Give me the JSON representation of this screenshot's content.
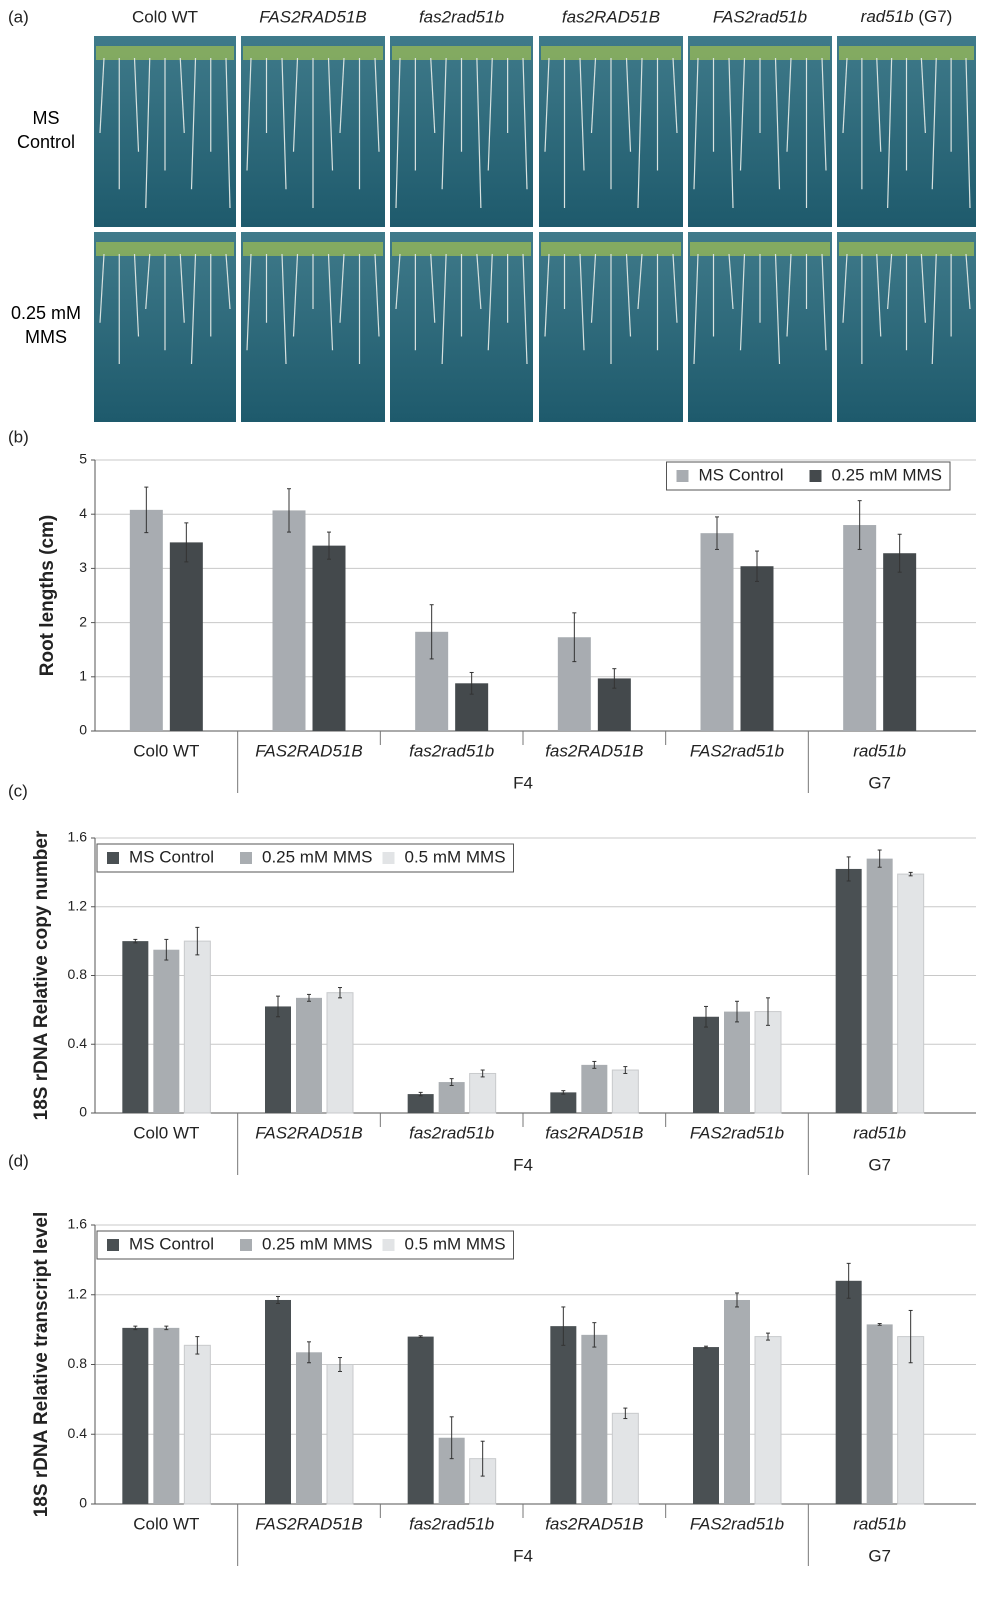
{
  "panel_a": {
    "label": "(a)",
    "columns": [
      "Col0 WT",
      "FAS2RAD51B",
      "fas2rad51b",
      "fas2RAD51B",
      "FAS2rad51b",
      "rad51b"
    ],
    "last_column_note": "(G7)",
    "rows": [
      "MS Control",
      "0.25 mM MMS"
    ]
  },
  "chart_data": [
    {
      "type": "bar",
      "panel": "(b)",
      "y_label": "Root lengths (cm)",
      "categories": [
        "Col0 WT",
        "FAS2RAD51B",
        "fas2rad51b",
        "fas2RAD51B",
        "FAS2rad51b",
        "rad51b"
      ],
      "groups": [
        {
          "label": "F4",
          "first": 1,
          "last": 4
        },
        {
          "label": "G7",
          "first": 5,
          "last": 5
        }
      ],
      "series": [
        {
          "name": "MS Control",
          "color": "#a8acb1",
          "values": [
            4.08,
            4.07,
            1.83,
            1.73,
            3.65,
            3.8
          ],
          "errors": [
            0.42,
            0.4,
            0.5,
            0.45,
            0.3,
            0.45
          ]
        },
        {
          "name": "0.25 mM MMS",
          "color": "#44494c",
          "values": [
            3.48,
            3.42,
            0.88,
            0.97,
            3.04,
            3.28
          ],
          "errors": [
            0.36,
            0.25,
            0.2,
            0.18,
            0.28,
            0.35
          ]
        }
      ],
      "ylim": [
        0,
        5
      ],
      "yticks": [
        0,
        1,
        2,
        3,
        4,
        5
      ],
      "grid": true,
      "legend": "upper right"
    },
    {
      "type": "bar",
      "panel": "(c)",
      "y_label": "18S rDNA Relative copy number",
      "categories": [
        "Col0 WT",
        "FAS2RAD51B",
        "fas2rad51b",
        "fas2RAD51B",
        "FAS2rad51b",
        "rad51b"
      ],
      "groups": [
        {
          "label": "F4",
          "first": 1,
          "last": 4
        },
        {
          "label": "G7",
          "first": 5,
          "last": 5
        }
      ],
      "series": [
        {
          "name": "MS Control",
          "color": "#4a5053",
          "values": [
            1.0,
            0.62,
            0.11,
            0.12,
            0.56,
            1.42
          ],
          "errors": [
            0.01,
            0.06,
            0.01,
            0.01,
            0.06,
            0.07
          ]
        },
        {
          "name": "0.25 mM MMS",
          "color": "#a9adb1",
          "values": [
            0.95,
            0.67,
            0.18,
            0.28,
            0.59,
            1.48
          ],
          "errors": [
            0.06,
            0.02,
            0.02,
            0.02,
            0.06,
            0.05
          ]
        },
        {
          "name": "0.5 mM MMS",
          "color": "#e2e4e6",
          "values": [
            1.0,
            0.7,
            0.23,
            0.25,
            0.59,
            1.39
          ],
          "errors": [
            0.08,
            0.03,
            0.02,
            0.02,
            0.08,
            0.01
          ]
        }
      ],
      "ylim": [
        0,
        1.6
      ],
      "yticks": [
        0,
        0.4,
        0.8,
        1.2,
        1.6
      ],
      "grid": true,
      "legend": "upper left"
    },
    {
      "type": "bar",
      "panel": "(d)",
      "y_label": "18S rDNA Relative transcript level",
      "categories": [
        "Col0 WT",
        "FAS2RAD51B",
        "fas2rad51b",
        "fas2RAD51B",
        "FAS2rad51b",
        "rad51b"
      ],
      "groups": [
        {
          "label": "F4",
          "first": 1,
          "last": 4
        },
        {
          "label": "G7",
          "first": 5,
          "last": 5
        }
      ],
      "series": [
        {
          "name": "MS Control",
          "color": "#4a5053",
          "values": [
            1.01,
            1.17,
            0.96,
            1.02,
            0.9,
            1.28
          ],
          "errors": [
            0.01,
            0.02,
            0.005,
            0.11,
            0.005,
            0.1
          ]
        },
        {
          "name": "0.25 mM MMS",
          "color": "#a9adb1",
          "values": [
            1.01,
            0.87,
            0.38,
            0.97,
            1.17,
            1.03
          ],
          "errors": [
            0.01,
            0.06,
            0.12,
            0.07,
            0.04,
            0.005
          ]
        },
        {
          "name": "0.5 mM MMS",
          "color": "#e2e4e6",
          "values": [
            0.91,
            0.8,
            0.26,
            0.52,
            0.96,
            0.96
          ],
          "errors": [
            0.05,
            0.04,
            0.1,
            0.03,
            0.02,
            0.15
          ]
        }
      ],
      "ylim": [
        0,
        1.6
      ],
      "yticks": [
        0,
        0.4,
        0.8,
        1.2,
        1.6
      ],
      "grid": true,
      "legend": "upper left"
    }
  ]
}
